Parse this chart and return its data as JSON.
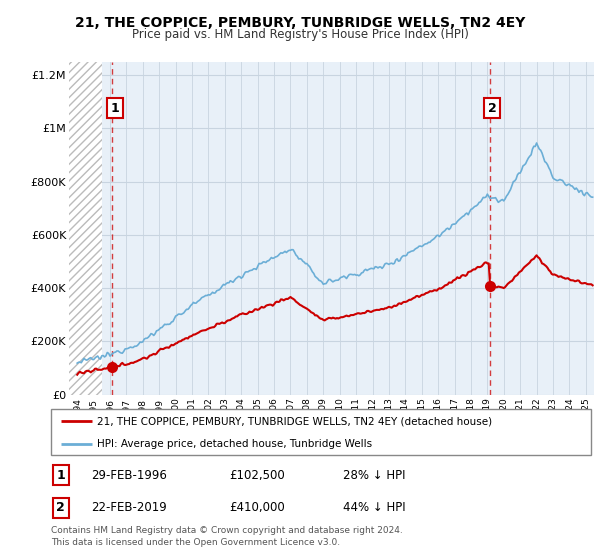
{
  "title": "21, THE COPPICE, PEMBURY, TUNBRIDGE WELLS, TN2 4EY",
  "subtitle": "Price paid vs. HM Land Registry's House Price Index (HPI)",
  "legend_line1": "21, THE COPPICE, PEMBURY, TUNBRIDGE WELLS, TN2 4EY (detached house)",
  "legend_line2": "HPI: Average price, detached house, Tunbridge Wells",
  "footnote": "Contains HM Land Registry data © Crown copyright and database right 2024.\nThis data is licensed under the Open Government Licence v3.0.",
  "sale1_label": "1",
  "sale1_date": "29-FEB-1996",
  "sale1_price": "£102,500",
  "sale1_hpi": "28% ↓ HPI",
  "sale1_year": 1996.15,
  "sale1_value": 102500,
  "sale2_label": "2",
  "sale2_date": "22-FEB-2019",
  "sale2_price": "£410,000",
  "sale2_hpi": "44% ↓ HPI",
  "sale2_year": 2019.15,
  "sale2_value": 410000,
  "hpi_color": "#6baed6",
  "sale_color": "#cc0000",
  "xlim_left": 1993.5,
  "xlim_right": 2025.5,
  "ylim_bottom": 0,
  "ylim_top": 1250000,
  "yticks": [
    0,
    200000,
    400000,
    600000,
    800000,
    1000000,
    1200000
  ],
  "ytick_labels": [
    "£0",
    "£200K",
    "£400K",
    "£600K",
    "£800K",
    "£1M",
    "£1.2M"
  ],
  "xticks": [
    1994,
    1995,
    1996,
    1997,
    1998,
    1999,
    2000,
    2001,
    2002,
    2003,
    2004,
    2005,
    2006,
    2007,
    2008,
    2009,
    2010,
    2011,
    2012,
    2013,
    2014,
    2015,
    2016,
    2017,
    2018,
    2019,
    2020,
    2021,
    2022,
    2023,
    2024,
    2025
  ],
  "hatch_region_end": 1995.5,
  "background_color": "#e8f0f8",
  "hatch_facecolor": "#d8d8d8"
}
